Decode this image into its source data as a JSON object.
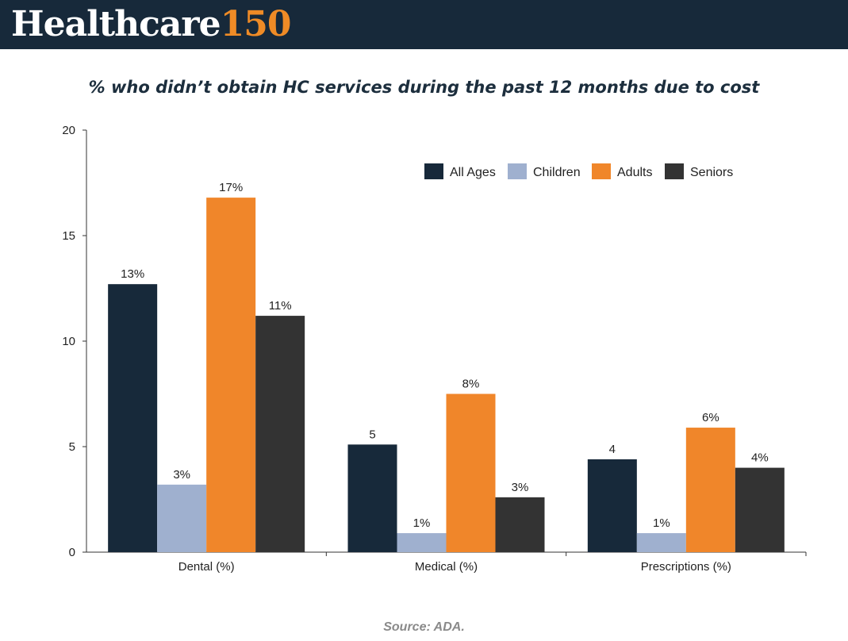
{
  "brand": {
    "word": "Healthcare",
    "number": "150",
    "colors": {
      "header_bg": "#17293a",
      "accent": "#ef8b26",
      "text": "#ffffff"
    }
  },
  "source": "Source: ADA.",
  "chart_data": {
    "type": "bar",
    "title": "% who didn’t obtain HC services during the past 12 months due to cost",
    "xlabel": "",
    "ylabel": "",
    "categories": [
      "Dental (%)",
      "Medical (%)",
      "Prescriptions (%)"
    ],
    "series": [
      {
        "name": "All Ages",
        "color": "#17293a",
        "values": [
          12.7,
          5.1,
          4.4
        ],
        "labels": [
          "13%",
          "5",
          "4"
        ]
      },
      {
        "name": "Children",
        "color": "#9fb0cf",
        "values": [
          3.2,
          0.9,
          0.9
        ],
        "labels": [
          "3%",
          "1%",
          "1%"
        ]
      },
      {
        "name": "Adults",
        "color": "#f0862a",
        "values": [
          16.8,
          7.5,
          5.9
        ],
        "labels": [
          "17%",
          "8%",
          "6%"
        ]
      },
      {
        "name": "Seniors",
        "color": "#333333",
        "values": [
          11.2,
          2.6,
          4.0
        ],
        "labels": [
          "11%",
          "3%",
          "4%"
        ]
      }
    ],
    "ylim": [
      0,
      20
    ],
    "yticks": [
      0,
      5,
      10,
      15,
      20
    ],
    "grid": false,
    "legend": "top-right"
  }
}
